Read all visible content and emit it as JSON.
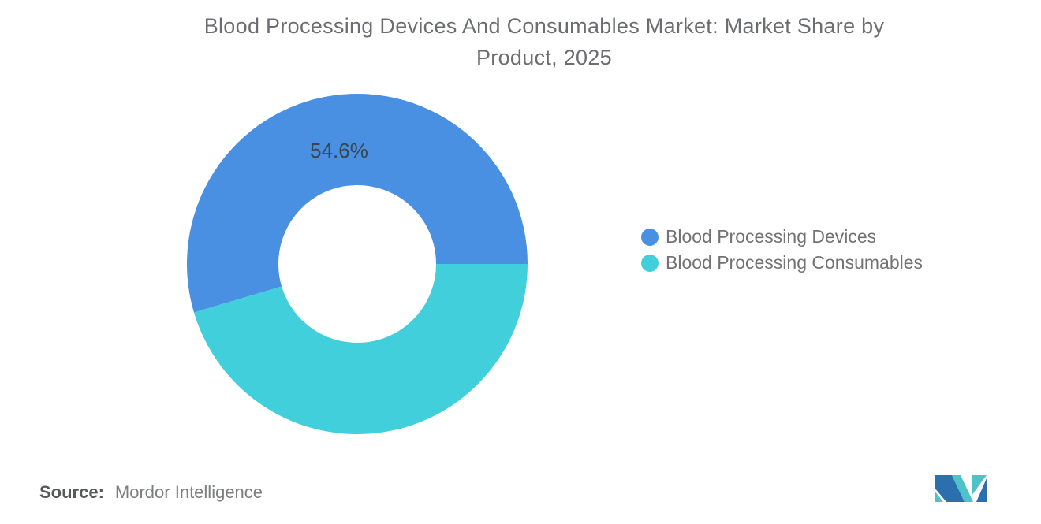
{
  "title": {
    "line1": "Blood Processing Devices And Consumables Market: Market Share by",
    "line2": "Product, 2025"
  },
  "source": {
    "label": "Source:",
    "value": "Mordor Intelligence"
  },
  "colors": {
    "background": "#ffffff",
    "title_text": "#6c6d70",
    "legend_text": "#737373",
    "data_label_text": "#37474f",
    "logo_blue": "#2B6FAF",
    "logo_teal": "#4BC3C9"
  },
  "chart_data": {
    "type": "pie",
    "subtype": "donut",
    "title": "Blood Processing Devices And Consumables Market: Market Share by Product, 2025",
    "units": "percent",
    "total": 100,
    "start_angle_deg": 0,
    "direction": "counterclockwise",
    "outer_radius_px": 216,
    "inner_radius_px": 100,
    "legend_position": "right",
    "series": [
      {
        "name": "Blood Processing Devices",
        "value": 54.6,
        "color": "#4A90E2",
        "label": "54.6%"
      },
      {
        "name": "Blood Processing Consumables",
        "value": 45.4,
        "color": "#40CFDB",
        "label": ""
      }
    ]
  }
}
